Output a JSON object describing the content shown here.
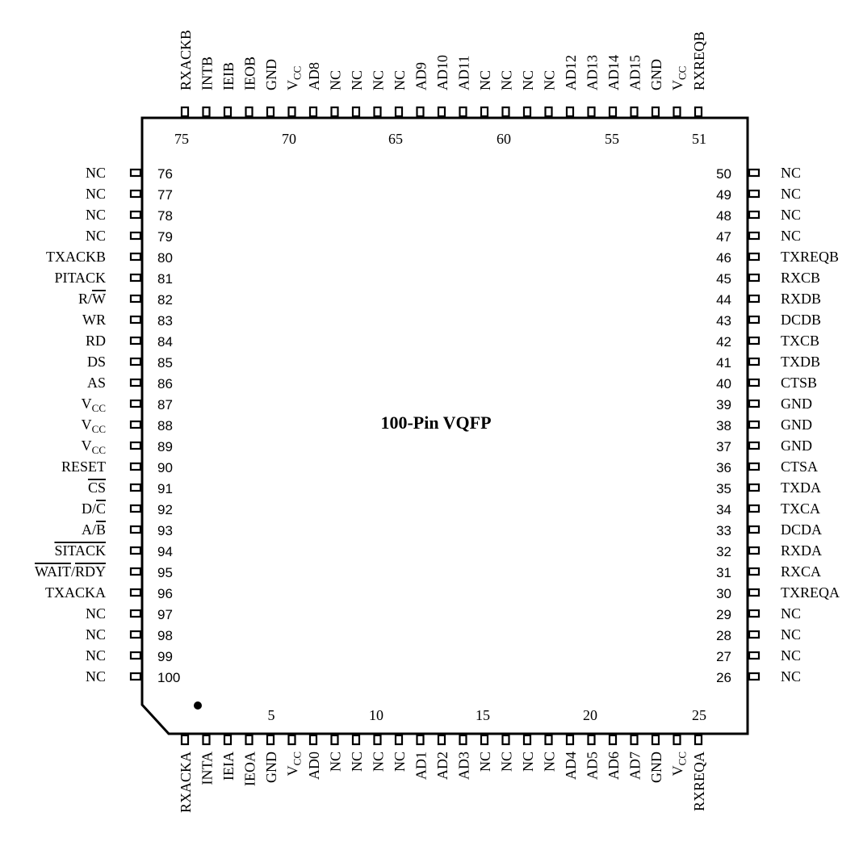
{
  "diagram": {
    "title": "100-Pin VQFP",
    "corner_numbers_top": [
      "75",
      "70",
      "65",
      "60",
      "55",
      "51"
    ],
    "corner_numbers_bottom": [
      "5",
      "10",
      "15",
      "20",
      "25"
    ],
    "left_pins": [
      {
        "num": "76",
        "label": "NC"
      },
      {
        "num": "77",
        "label": "NC"
      },
      {
        "num": "78",
        "label": "NC"
      },
      {
        "num": "79",
        "label": "NC"
      },
      {
        "num": "80",
        "label": "TXACKB"
      },
      {
        "num": "81",
        "label": "PITACK"
      },
      {
        "num": "82",
        "label": "R/W"
      },
      {
        "num": "83",
        "label": "WR"
      },
      {
        "num": "84",
        "label": "RD"
      },
      {
        "num": "85",
        "label": "DS"
      },
      {
        "num": "86",
        "label": "AS"
      },
      {
        "num": "87",
        "label": "VCC"
      },
      {
        "num": "88",
        "label": "VCC"
      },
      {
        "num": "89",
        "label": "VCC"
      },
      {
        "num": "90",
        "label": "RESET"
      },
      {
        "num": "91",
        "label": "CS"
      },
      {
        "num": "92",
        "label": "D/C"
      },
      {
        "num": "93",
        "label": "A/B"
      },
      {
        "num": "94",
        "label": "SITACK"
      },
      {
        "num": "95",
        "label": "WAIT/RDY"
      },
      {
        "num": "96",
        "label": "TXACKA"
      },
      {
        "num": "97",
        "label": "NC"
      },
      {
        "num": "98",
        "label": "NC"
      },
      {
        "num": "99",
        "label": "NC"
      },
      {
        "num": "100",
        "label": "NC"
      }
    ],
    "right_pins": [
      {
        "num": "50",
        "label": "NC"
      },
      {
        "num": "49",
        "label": "NC"
      },
      {
        "num": "48",
        "label": "NC"
      },
      {
        "num": "47",
        "label": "NC"
      },
      {
        "num": "46",
        "label": "TXREQB"
      },
      {
        "num": "45",
        "label": "RXCB"
      },
      {
        "num": "44",
        "label": "RXDB"
      },
      {
        "num": "43",
        "label": "DCDB"
      },
      {
        "num": "42",
        "label": "TXCB"
      },
      {
        "num": "41",
        "label": "TXDB"
      },
      {
        "num": "40",
        "label": "CTSB"
      },
      {
        "num": "39",
        "label": "GND"
      },
      {
        "num": "38",
        "label": "GND"
      },
      {
        "num": "37",
        "label": "GND"
      },
      {
        "num": "36",
        "label": "CTSA"
      },
      {
        "num": "35",
        "label": "TXDA"
      },
      {
        "num": "34",
        "label": "TXCA"
      },
      {
        "num": "33",
        "label": "DCDA"
      },
      {
        "num": "32",
        "label": "RXDA"
      },
      {
        "num": "31",
        "label": "RXCA"
      },
      {
        "num": "30",
        "label": "TXREQA"
      },
      {
        "num": "29",
        "label": "NC"
      },
      {
        "num": "28",
        "label": "NC"
      },
      {
        "num": "27",
        "label": "NC"
      },
      {
        "num": "26",
        "label": "NC"
      }
    ],
    "top_pins": [
      "RXACKB",
      "INTB",
      "IEIB",
      "IEOB",
      "GND",
      "VCC",
      "AD8",
      "NC",
      "NC",
      "NC",
      "NC",
      "AD9",
      "AD10",
      "AD11",
      "NC",
      "NC",
      "NC",
      "NC",
      "AD12",
      "AD13",
      "AD14",
      "AD15",
      "GND",
      "VCC",
      "RXREQB"
    ],
    "bottom_pins": [
      "RXACKA",
      "INTA",
      "IEIA",
      "IEOA",
      "GND",
      "VCC",
      "AD0",
      "NC",
      "NC",
      "NC",
      "NC",
      "AD1",
      "AD2",
      "AD3",
      "NC",
      "NC",
      "NC",
      "NC",
      "AD4",
      "AD5",
      "AD6",
      "AD7",
      "GND",
      "VCC",
      "RXREQA"
    ],
    "overlined_labels": [
      "R/W",
      "CS",
      "D/C",
      "A/B",
      "SITACK",
      "WAIT/RDY"
    ]
  }
}
